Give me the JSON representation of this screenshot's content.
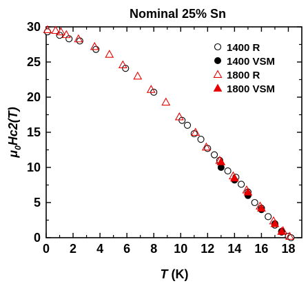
{
  "chart_data": {
    "type": "scatter",
    "title": "Nominal 25% Sn",
    "xlabel": {
      "main": "T",
      "unit": " (K)"
    },
    "ylabel": {
      "mu": "μ",
      "sub": "0",
      "rest": "Hc2(T)"
    },
    "xlim": [
      0,
      19
    ],
    "ylim": [
      0,
      30
    ],
    "xticks": [
      0,
      2,
      4,
      6,
      8,
      10,
      12,
      14,
      16,
      18
    ],
    "yticks": [
      0,
      5,
      10,
      15,
      20,
      25,
      30
    ],
    "legend_position": "top-right",
    "series": [
      {
        "name": "1400 R",
        "marker": "circle-open",
        "color": "#000000",
        "points": [
          [
            0.1,
            29.3
          ],
          [
            1.0,
            28.8
          ],
          [
            1.7,
            28.3
          ],
          [
            2.5,
            28.0
          ],
          [
            3.7,
            26.8
          ],
          [
            5.9,
            24.1
          ],
          [
            8.0,
            20.7
          ],
          [
            10.1,
            16.7
          ],
          [
            10.5,
            16.0
          ],
          [
            11.0,
            14.8
          ],
          [
            11.5,
            14.0
          ],
          [
            12.0,
            12.7
          ],
          [
            12.5,
            11.8
          ],
          [
            12.9,
            11.0
          ],
          [
            13.5,
            9.5
          ],
          [
            14.1,
            8.6
          ],
          [
            14.5,
            7.6
          ],
          [
            15.0,
            6.5
          ],
          [
            15.5,
            5.0
          ],
          [
            16.0,
            4.2
          ],
          [
            16.5,
            3.0
          ],
          [
            17.0,
            1.8
          ],
          [
            17.5,
            0.9
          ],
          [
            18.0,
            0.2
          ],
          [
            18.2,
            0
          ]
        ]
      },
      {
        "name": "1400 VSM",
        "marker": "circle-filled",
        "color": "#000000",
        "points": [
          [
            13.0,
            10.0
          ],
          [
            14.0,
            8.2
          ],
          [
            15.0,
            6.0
          ],
          [
            16.0,
            4.0
          ],
          [
            17.0,
            2.0
          ],
          [
            17.5,
            0.8
          ]
        ]
      },
      {
        "name": "1800 R",
        "marker": "triangle-open",
        "color": "#e60000",
        "points": [
          [
            0.1,
            29.6
          ],
          [
            0.7,
            29.5
          ],
          [
            1.1,
            29.3
          ],
          [
            1.5,
            28.9
          ],
          [
            2.4,
            28.3
          ],
          [
            3.6,
            27.2
          ],
          [
            4.7,
            26.1
          ],
          [
            5.7,
            24.6
          ],
          [
            6.8,
            23.0
          ],
          [
            7.8,
            21.1
          ],
          [
            8.9,
            19.3
          ],
          [
            9.9,
            17.2
          ],
          [
            11.1,
            15.0
          ],
          [
            11.9,
            12.9
          ],
          [
            12.9,
            11.0
          ],
          [
            13.9,
            8.8
          ],
          [
            14.9,
            6.8
          ],
          [
            15.9,
            4.5
          ],
          [
            16.9,
            2.4
          ],
          [
            17.6,
            1.0
          ],
          [
            18.1,
            0.2
          ]
        ]
      },
      {
        "name": "1800 VSM",
        "marker": "triangle-filled",
        "color": "#e60000",
        "points": [
          [
            13.0,
            10.8
          ],
          [
            14.0,
            8.5
          ],
          [
            15.0,
            6.5
          ],
          [
            16.0,
            4.2
          ],
          [
            17.0,
            2.0
          ],
          [
            17.5,
            0.9
          ]
        ]
      }
    ]
  }
}
